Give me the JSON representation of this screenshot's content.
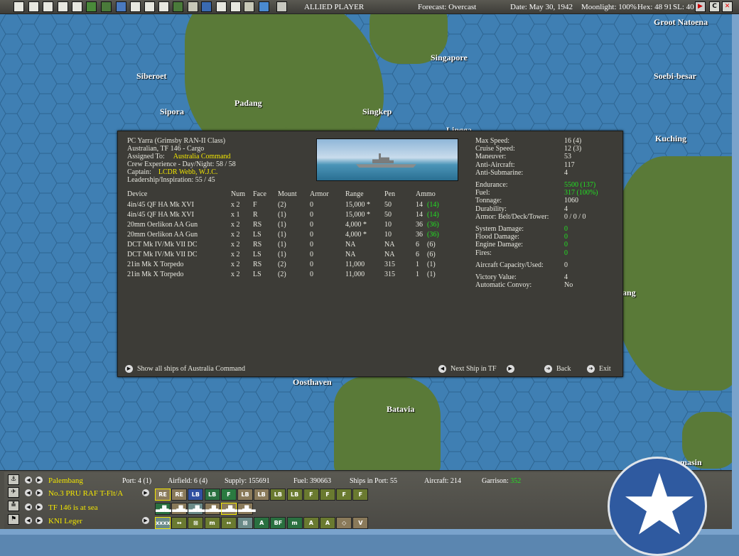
{
  "topbar": {
    "toolbar_icons": [
      "save-icon",
      "report-icon",
      "airgroup-icon",
      "ship-icon",
      "info-icon",
      "star-icon",
      "fighter-red-icon",
      "fighter-blue-icon",
      "flag-icon",
      "base-icon",
      "airbase-icon",
      "terrain-icon",
      "fleet-icon",
      "globe-icon",
      "target-icon",
      "op-icon",
      "settings-icon",
      "weather-icon",
      "end-turn-icon"
    ],
    "player": "ALLIED PLAYER",
    "forecast": "Forecast: Overcast",
    "date": "Date: May 30, 1942",
    "moonlight": "Moonlight: 100%",
    "hex": "Hex: 48 91",
    "sl": "SL: 40",
    "right_icons": [
      "flag-toggle-icon",
      "combat-icon",
      "close-icon"
    ],
    "c_label": "C",
    "x_label": "✕"
  },
  "map": {
    "labels": [
      "Groot Natoena",
      "Singapore",
      "Siberoet",
      "Soebi-besar",
      "Sipora",
      "Padang",
      "Singkep",
      "Lingga",
      "Kuching",
      "Oosthaven",
      "Batavia",
      "Bandjermasin",
      "ang"
    ]
  },
  "dialog": {
    "ship_name": "PC Yarra (Grimsby RAN-II Class)",
    "nation_tf": "Australian, TF 146 - Cargo",
    "assigned_label": "Assigned To:",
    "assigned_value": "Australia Command",
    "crew_exp": "Crew Experience - Day/Night:  58 / 58",
    "captain_label": "Captain:",
    "captain_value": "LCDR Webb, W.J.C.",
    "leadership": "Leadership/Inspiration: 55 / 45",
    "columns": [
      "Device",
      "Num",
      "Face",
      "Mount",
      "Armor",
      "Range",
      "Pen",
      "Ammo"
    ],
    "devices": [
      {
        "device": "4in/45 QF HA Mk XVI",
        "num": "x 2",
        "face": "F",
        "mount": "(2)",
        "armor": "0",
        "range": "15,000 *",
        "pen": "50",
        "ammo": "14",
        "ammo_max": "(14)",
        "green": true
      },
      {
        "device": "4in/45 QF HA Mk XVI",
        "num": "x 1",
        "face": "R",
        "mount": "(1)",
        "armor": "0",
        "range": "15,000 *",
        "pen": "50",
        "ammo": "14",
        "ammo_max": "(14)",
        "green": true
      },
      {
        "device": "20mm Oerlikon AA Gun",
        "num": "x 2",
        "face": "RS",
        "mount": "(1)",
        "armor": "0",
        "range": "4,000 *",
        "pen": "10",
        "ammo": "36",
        "ammo_max": "(36)",
        "green": true
      },
      {
        "device": "20mm Oerlikon AA Gun",
        "num": "x 2",
        "face": "LS",
        "mount": "(1)",
        "armor": "0",
        "range": "4,000 *",
        "pen": "10",
        "ammo": "36",
        "ammo_max": "(36)",
        "green": true
      },
      {
        "device": "DCT Mk IV/Mk VII DC",
        "num": "x 2",
        "face": "RS",
        "mount": "(1)",
        "armor": "0",
        "range": "NA",
        "pen": "NA",
        "ammo": "6",
        "ammo_max": "(6)",
        "green": false
      },
      {
        "device": "DCT Mk IV/Mk VII DC",
        "num": "x 2",
        "face": "LS",
        "mount": "(1)",
        "armor": "0",
        "range": "NA",
        "pen": "NA",
        "ammo": "6",
        "ammo_max": "(6)",
        "green": false
      },
      {
        "device": "21in Mk X Torpedo",
        "num": "x 2",
        "face": "RS",
        "mount": "(2)",
        "armor": "0",
        "range": "11,000",
        "pen": "315",
        "ammo": "1",
        "ammo_max": "(1)",
        "green": false
      },
      {
        "device": "21in Mk X Torpedo",
        "num": "x 2",
        "face": "LS",
        "mount": "(2)",
        "armor": "0",
        "range": "11,000",
        "pen": "315",
        "ammo": "1",
        "ammo_max": "(1)",
        "green": false
      }
    ],
    "stats": [
      {
        "label": "Max Speed:",
        "value": "16 (4)",
        "green": false,
        "gap": false
      },
      {
        "label": "Cruise Speed:",
        "value": "12 (3)",
        "green": false,
        "gap": false
      },
      {
        "label": "Maneuver:",
        "value": "53",
        "green": false,
        "gap": false
      },
      {
        "label": "Anti-Aircraft:",
        "value": "117",
        "green": false,
        "gap": false
      },
      {
        "label": "Anti-Submarine:",
        "value": "4",
        "green": false,
        "gap": false
      },
      {
        "label": "Endurance:",
        "value": "5500 (137)",
        "green": true,
        "gap": true
      },
      {
        "label": "Fuel:",
        "value": "317 (100%)",
        "green": true,
        "gap": false
      },
      {
        "label": "Tonnage:",
        "value": "1060",
        "green": false,
        "gap": false
      },
      {
        "label": "Durability:",
        "value": "4",
        "green": false,
        "gap": false
      },
      {
        "label": "Armor: Belt/Deck/Tower:",
        "value": "0 / 0 / 0",
        "green": false,
        "gap": false
      },
      {
        "label": "System Damage:",
        "value": "0",
        "green": true,
        "gap": true
      },
      {
        "label": "Flood Damage:",
        "value": "0",
        "green": true,
        "gap": false
      },
      {
        "label": "Engine Damage:",
        "value": "0",
        "green": true,
        "gap": false
      },
      {
        "label": "Fires:",
        "value": "0",
        "green": true,
        "gap": false
      },
      {
        "label": "Aircraft Capacity/Used:",
        "value": "0",
        "green": false,
        "gap": true
      },
      {
        "label": "Victory Value:",
        "value": "4",
        "green": false,
        "gap": true
      },
      {
        "label": "Automatic Convoy:",
        "value": "No",
        "green": false,
        "gap": false
      }
    ],
    "show_all": "Show all ships of Australia Command",
    "next_ship": "Next Ship in TF",
    "back": "Back",
    "exit": "Exit"
  },
  "bottom": {
    "base_name": "Palembang",
    "port": "Port: 4 (1)",
    "airfield": "Airfield: 6 (4)",
    "supply": "Supply: 155691",
    "fuel": "Fuel: 390663",
    "ships_in_port": "Ships in Port: 55",
    "aircraft": "Aircraft: 214",
    "garrison_label": "Garrison:",
    "garrison_value": "352",
    "air_unit": "No.3 PRU RAF T-Flt/A",
    "tf": "TF 146 is at sea",
    "land_unit": "KNI Leger",
    "air_units": [
      {
        "label": "RE",
        "color": "#8a7a5a",
        "sel": true
      },
      {
        "label": "RE",
        "color": "#8a7a5a"
      },
      {
        "label": "LB",
        "color": "#3050a0"
      },
      {
        "label": "LB",
        "color": "#2a7040"
      },
      {
        "label": "F",
        "color": "#2a7a40"
      },
      {
        "label": "LB",
        "color": "#8a7a5a"
      },
      {
        "label": "LB",
        "color": "#8a7a5a"
      },
      {
        "label": "LB",
        "color": "#6a7a30"
      },
      {
        "label": "LB",
        "color": "#6a7a30"
      },
      {
        "label": "F",
        "color": "#6a7a30"
      },
      {
        "label": "F",
        "color": "#6a7a30"
      },
      {
        "label": "F",
        "color": "#6a7a30"
      },
      {
        "label": "F",
        "color": "#6a7a30"
      }
    ],
    "tf_units": [
      {
        "label": "",
        "color": "#2a7040"
      },
      {
        "label": "",
        "color": "#8a7a5a"
      },
      {
        "label": "",
        "color": "#6a8a88"
      },
      {
        "label": "",
        "color": "#8a7a5a"
      },
      {
        "label": "",
        "color": "#8a7a5a",
        "sel": true
      },
      {
        "label": "",
        "color": "#8a7a5a"
      }
    ],
    "land_units": [
      {
        "label": "xxxx",
        "color": "#6a8a88",
        "sel": true
      },
      {
        "label": "↔",
        "color": "#6a7a30"
      },
      {
        "label": "⊠",
        "color": "#6a7a30"
      },
      {
        "label": "m",
        "color": "#6a7a30"
      },
      {
        "label": "↔",
        "color": "#6a7a30"
      },
      {
        "label": "⊠",
        "color": "#6a8a88"
      },
      {
        "label": "A",
        "color": "#2a7040"
      },
      {
        "label": "BF",
        "color": "#2a7040"
      },
      {
        "label": "m",
        "color": "#2a7040"
      },
      {
        "label": "A",
        "color": "#6a7a30"
      },
      {
        "label": "A",
        "color": "#6a7a30"
      },
      {
        "label": "◇",
        "color": "#8a7a5a"
      },
      {
        "label": "V",
        "color": "#8a7a5a"
      }
    ]
  },
  "colors": {
    "highlight": "#f2e600",
    "good": "#22e022",
    "sea": "#3f7fb3",
    "land": "#5a7a38",
    "panel": "#3d3c37"
  }
}
